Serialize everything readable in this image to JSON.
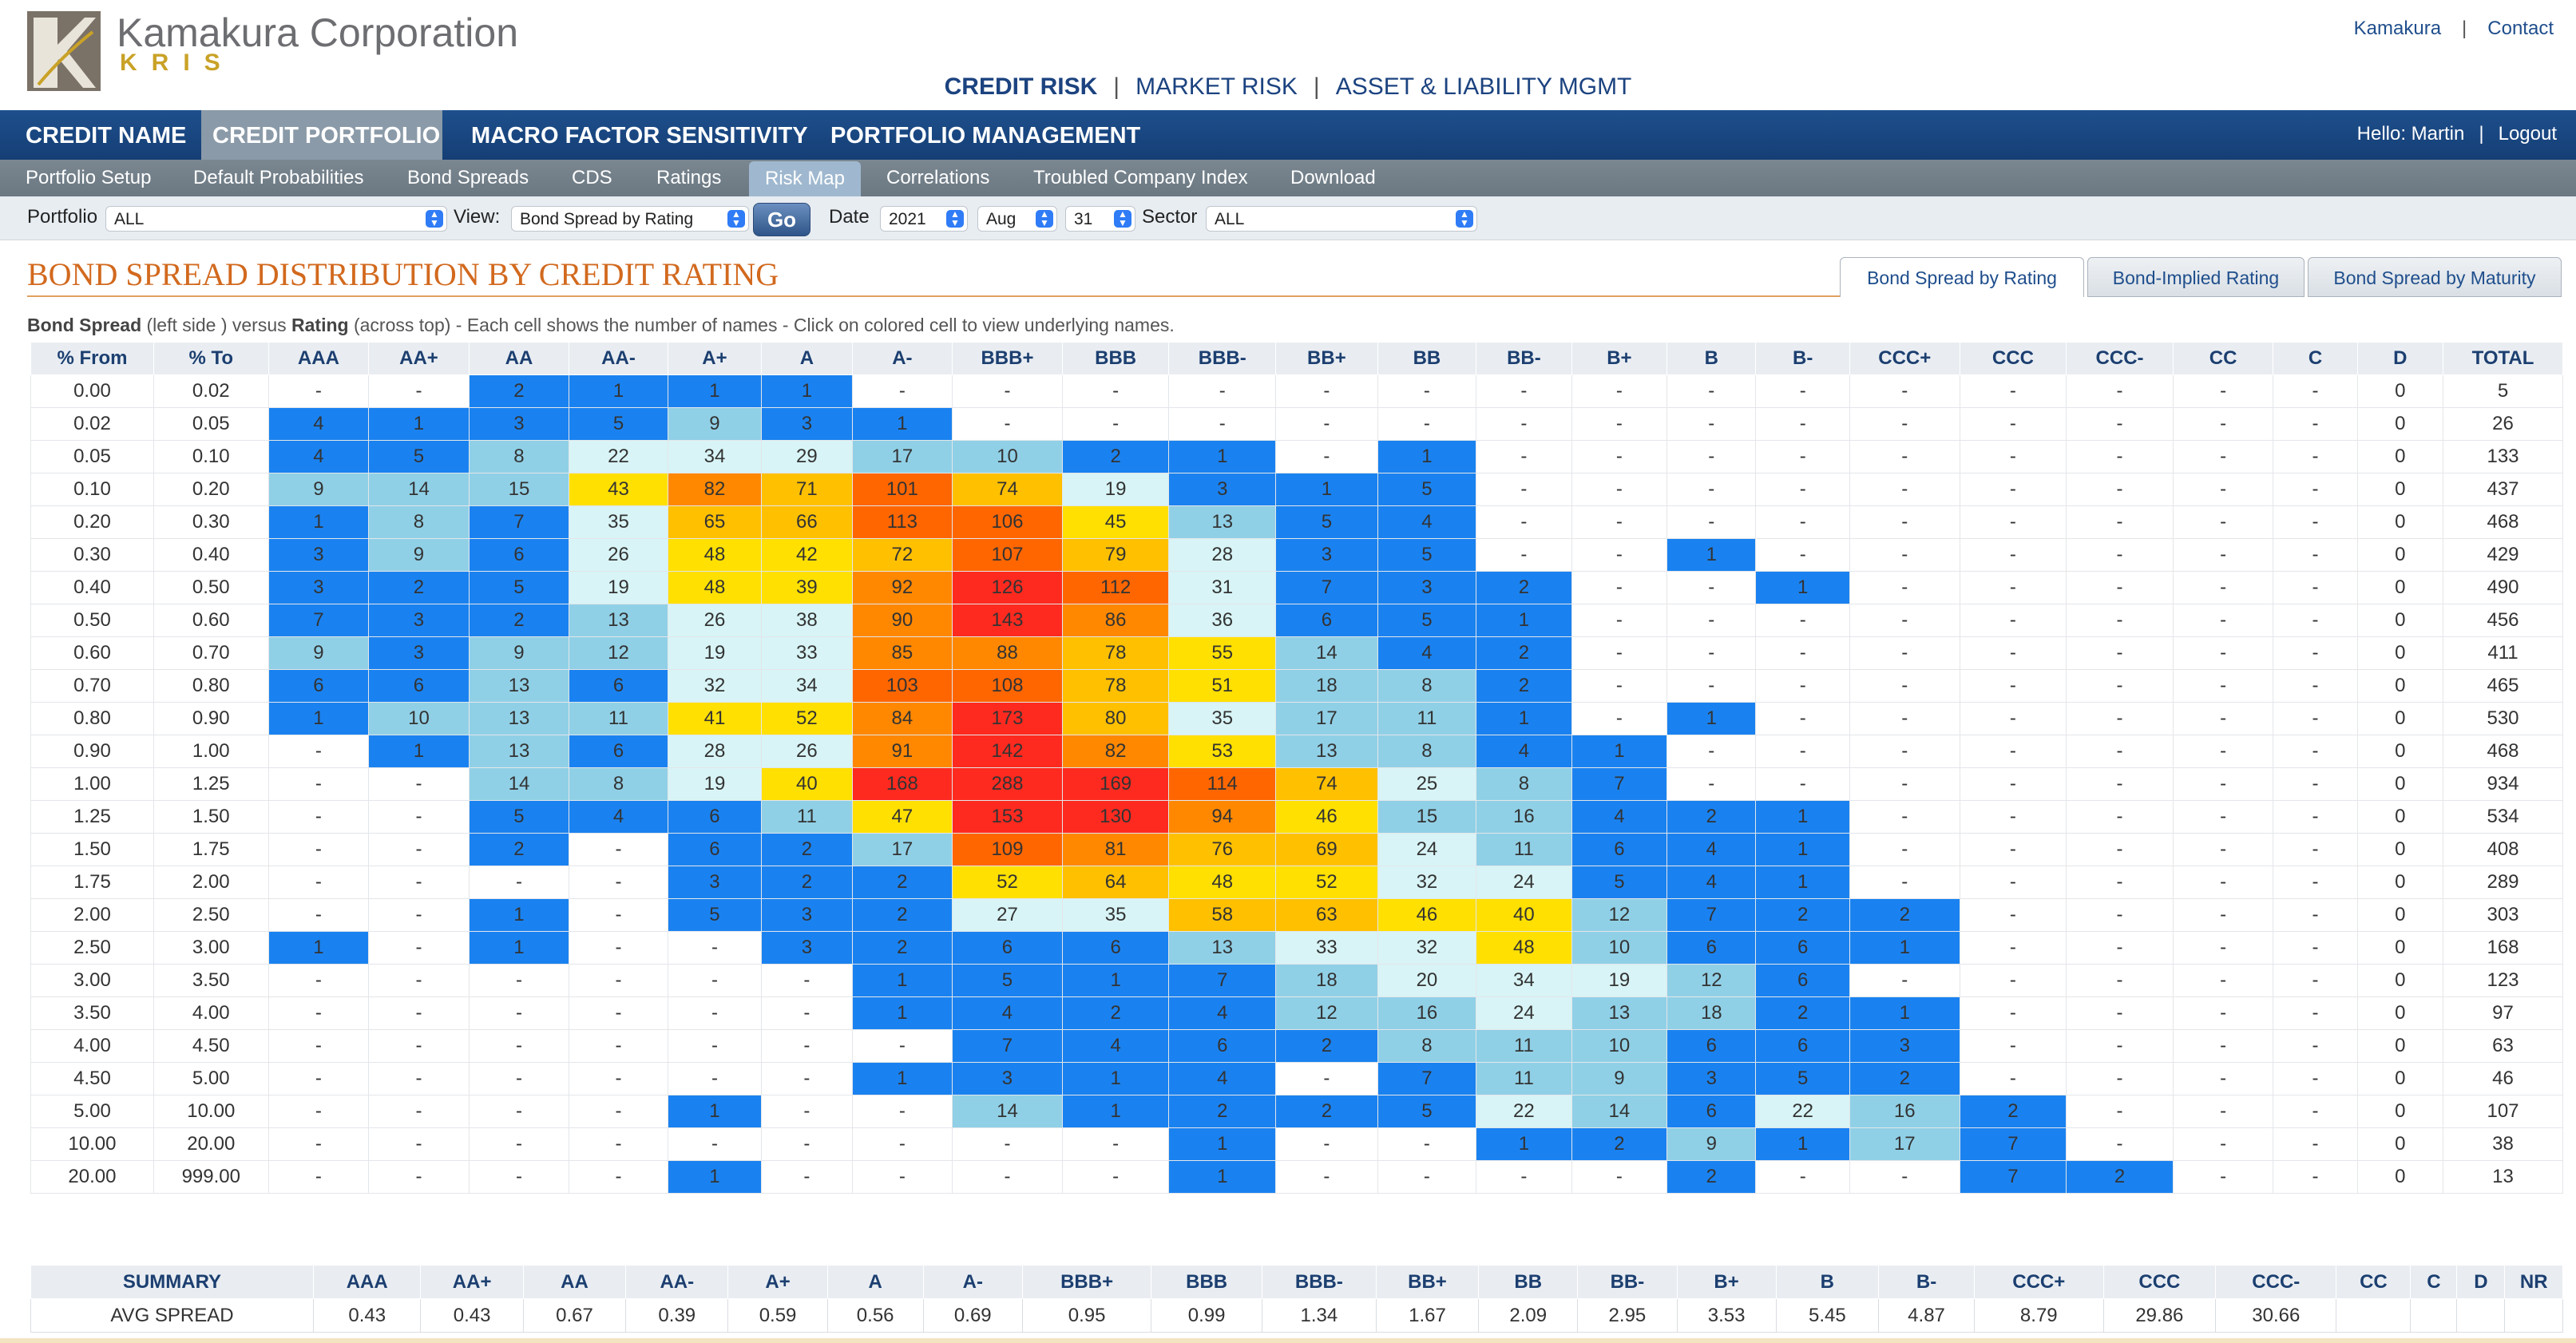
{
  "header": {
    "company": "Kamakura Corporation",
    "product": "KRIS",
    "top_links": [
      "Kamakura",
      "Contact"
    ],
    "main_nav": [
      "CREDIT RISK",
      "MARKET RISK",
      "ASSET & LIABILITY MGMT"
    ]
  },
  "nav": {
    "primary_tabs": [
      "CREDIT NAME",
      "CREDIT PORTFOLIO",
      "MACRO FACTOR SENSITIVITY",
      "PORTFOLIO MANAGEMENT"
    ],
    "primary_active": "CREDIT PORTFOLIO",
    "greeting": "Hello: Martin",
    "logout": "Logout",
    "secondary_tabs": [
      "Portfolio Setup",
      "Default Probabilities",
      "Bond Spreads",
      "CDS",
      "Ratings",
      "Risk Map",
      "Correlations",
      "Troubled Company Index",
      "Download"
    ],
    "secondary_active": "Risk Map"
  },
  "filters": {
    "portfolio_label": "Portfolio",
    "portfolio_value": "ALL",
    "view_label": "View:",
    "view_value": "Bond Spread by Rating",
    "go_label": "Go",
    "date_label": "Date",
    "year": "2021",
    "month": "Aug",
    "day": "31",
    "sector_label": "Sector",
    "sector_value": "ALL"
  },
  "page": {
    "title": "BOND SPREAD DISTRIBUTION BY CREDIT RATING",
    "view_tabs": [
      "Bond Spread by Rating",
      "Bond-Implied Rating",
      "Bond Spread by Maturity"
    ],
    "view_tab_active": "Bond Spread by Rating",
    "subtitle_bold1": "Bond Spread",
    "subtitle_part1": " (left side ) versus ",
    "subtitle_bold2": "Rating",
    "subtitle_part2": " (across top) - Each cell shows the number of names - Click on colored cell to view underlying names."
  },
  "colors": {
    "blue": "#1a82f0",
    "light_blue": "#90d0e6",
    "pale_cyan": "#d8f4f6",
    "yellow": "#ffe000",
    "gold": "#ffc000",
    "orange": "#ff8800",
    "dark_orange": "#ff6600",
    "red": "#ff2a1f"
  },
  "grid": {
    "headers": [
      "% From",
      "% To",
      "AAA",
      "AA+",
      "AA",
      "AA-",
      "A+",
      "A",
      "A-",
      "BBB+",
      "BBB",
      "BBB-",
      "BB+",
      "BB",
      "BB-",
      "B+",
      "B",
      "B-",
      "CCC+",
      "CCC",
      "CCC-",
      "CC",
      "C",
      "D",
      "TOTAL"
    ],
    "rows": [
      [
        "0.00",
        "0.02",
        "-",
        "-",
        "2",
        "1",
        "1",
        "1",
        "-",
        "-",
        "-",
        "-",
        "-",
        "-",
        "-",
        "-",
        "-",
        "-",
        "-",
        "-",
        "-",
        "-",
        "-",
        "0",
        "5"
      ],
      [
        "0.02",
        "0.05",
        "4",
        "1",
        "3",
        "5",
        "9",
        "3",
        "1",
        "-",
        "-",
        "-",
        "-",
        "-",
        "-",
        "-",
        "-",
        "-",
        "-",
        "-",
        "-",
        "-",
        "-",
        "0",
        "26"
      ],
      [
        "0.05",
        "0.10",
        "4",
        "5",
        "8",
        "22",
        "34",
        "29",
        "17",
        "10",
        "2",
        "1",
        "-",
        "1",
        "-",
        "-",
        "-",
        "-",
        "-",
        "-",
        "-",
        "-",
        "-",
        "0",
        "133"
      ],
      [
        "0.10",
        "0.20",
        "9",
        "14",
        "15",
        "43",
        "82",
        "71",
        "101",
        "74",
        "19",
        "3",
        "1",
        "5",
        "-",
        "-",
        "-",
        "-",
        "-",
        "-",
        "-",
        "-",
        "-",
        "0",
        "437"
      ],
      [
        "0.20",
        "0.30",
        "1",
        "8",
        "7",
        "35",
        "65",
        "66",
        "113",
        "106",
        "45",
        "13",
        "5",
        "4",
        "-",
        "-",
        "-",
        "-",
        "-",
        "-",
        "-",
        "-",
        "-",
        "0",
        "468"
      ],
      [
        "0.30",
        "0.40",
        "3",
        "9",
        "6",
        "26",
        "48",
        "42",
        "72",
        "107",
        "79",
        "28",
        "3",
        "5",
        "-",
        "-",
        "1",
        "-",
        "-",
        "-",
        "-",
        "-",
        "-",
        "0",
        "429"
      ],
      [
        "0.40",
        "0.50",
        "3",
        "2",
        "5",
        "19",
        "48",
        "39",
        "92",
        "126",
        "112",
        "31",
        "7",
        "3",
        "2",
        "-",
        "-",
        "1",
        "-",
        "-",
        "-",
        "-",
        "-",
        "0",
        "490"
      ],
      [
        "0.50",
        "0.60",
        "7",
        "3",
        "2",
        "13",
        "26",
        "38",
        "90",
        "143",
        "86",
        "36",
        "6",
        "5",
        "1",
        "-",
        "-",
        "-",
        "-",
        "-",
        "-",
        "-",
        "-",
        "0",
        "456"
      ],
      [
        "0.60",
        "0.70",
        "9",
        "3",
        "9",
        "12",
        "19",
        "33",
        "85",
        "88",
        "78",
        "55",
        "14",
        "4",
        "2",
        "-",
        "-",
        "-",
        "-",
        "-",
        "-",
        "-",
        "-",
        "0",
        "411"
      ],
      [
        "0.70",
        "0.80",
        "6",
        "6",
        "13",
        "6",
        "32",
        "34",
        "103",
        "108",
        "78",
        "51",
        "18",
        "8",
        "2",
        "-",
        "-",
        "-",
        "-",
        "-",
        "-",
        "-",
        "-",
        "0",
        "465"
      ],
      [
        "0.80",
        "0.90",
        "1",
        "10",
        "13",
        "11",
        "41",
        "52",
        "84",
        "173",
        "80",
        "35",
        "17",
        "11",
        "1",
        "-",
        "1",
        "-",
        "-",
        "-",
        "-",
        "-",
        "-",
        "0",
        "530"
      ],
      [
        "0.90",
        "1.00",
        "-",
        "1",
        "13",
        "6",
        "28",
        "26",
        "91",
        "142",
        "82",
        "53",
        "13",
        "8",
        "4",
        "1",
        "-",
        "-",
        "-",
        "-",
        "-",
        "-",
        "-",
        "0",
        "468"
      ],
      [
        "1.00",
        "1.25",
        "-",
        "-",
        "14",
        "8",
        "19",
        "40",
        "168",
        "288",
        "169",
        "114",
        "74",
        "25",
        "8",
        "7",
        "-",
        "-",
        "-",
        "-",
        "-",
        "-",
        "-",
        "0",
        "934"
      ],
      [
        "1.25",
        "1.50",
        "-",
        "-",
        "5",
        "4",
        "6",
        "11",
        "47",
        "153",
        "130",
        "94",
        "46",
        "15",
        "16",
        "4",
        "2",
        "1",
        "-",
        "-",
        "-",
        "-",
        "-",
        "0",
        "534"
      ],
      [
        "1.50",
        "1.75",
        "-",
        "-",
        "2",
        "-",
        "6",
        "2",
        "17",
        "109",
        "81",
        "76",
        "69",
        "24",
        "11",
        "6",
        "4",
        "1",
        "-",
        "-",
        "-",
        "-",
        "-",
        "0",
        "408"
      ],
      [
        "1.75",
        "2.00",
        "-",
        "-",
        "-",
        "-",
        "3",
        "2",
        "2",
        "52",
        "64",
        "48",
        "52",
        "32",
        "24",
        "5",
        "4",
        "1",
        "-",
        "-",
        "-",
        "-",
        "-",
        "0",
        "289"
      ],
      [
        "2.00",
        "2.50",
        "-",
        "-",
        "1",
        "-",
        "5",
        "3",
        "2",
        "27",
        "35",
        "58",
        "63",
        "46",
        "40",
        "12",
        "7",
        "2",
        "2",
        "-",
        "-",
        "-",
        "-",
        "0",
        "303"
      ],
      [
        "2.50",
        "3.00",
        "1",
        "-",
        "1",
        "-",
        "-",
        "3",
        "2",
        "6",
        "6",
        "13",
        "33",
        "32",
        "48",
        "10",
        "6",
        "6",
        "1",
        "-",
        "-",
        "-",
        "-",
        "0",
        "168"
      ],
      [
        "3.00",
        "3.50",
        "-",
        "-",
        "-",
        "-",
        "-",
        "-",
        "1",
        "5",
        "1",
        "7",
        "18",
        "20",
        "34",
        "19",
        "12",
        "6",
        "-",
        "-",
        "-",
        "-",
        "-",
        "0",
        "123"
      ],
      [
        "3.50",
        "4.00",
        "-",
        "-",
        "-",
        "-",
        "-",
        "-",
        "1",
        "4",
        "2",
        "4",
        "12",
        "16",
        "24",
        "13",
        "18",
        "2",
        "1",
        "-",
        "-",
        "-",
        "-",
        "0",
        "97"
      ],
      [
        "4.00",
        "4.50",
        "-",
        "-",
        "-",
        "-",
        "-",
        "-",
        "-",
        "7",
        "4",
        "6",
        "2",
        "8",
        "11",
        "10",
        "6",
        "6",
        "3",
        "-",
        "-",
        "-",
        "-",
        "0",
        "63"
      ],
      [
        "4.50",
        "5.00",
        "-",
        "-",
        "-",
        "-",
        "-",
        "-",
        "1",
        "3",
        "1",
        "4",
        "-",
        "7",
        "11",
        "9",
        "3",
        "5",
        "2",
        "-",
        "-",
        "-",
        "-",
        "0",
        "46"
      ],
      [
        "5.00",
        "10.00",
        "-",
        "-",
        "-",
        "-",
        "1",
        "-",
        "-",
        "14",
        "1",
        "2",
        "2",
        "5",
        "22",
        "14",
        "6",
        "22",
        "16",
        "2",
        "-",
        "-",
        "-",
        "0",
        "107"
      ],
      [
        "10.00",
        "20.00",
        "-",
        "-",
        "-",
        "-",
        "-",
        "-",
        "-",
        "-",
        "-",
        "1",
        "-",
        "-",
        "1",
        "2",
        "9",
        "1",
        "17",
        "7",
        "-",
        "-",
        "-",
        "0",
        "38"
      ],
      [
        "20.00",
        "999.00",
        "-",
        "-",
        "-",
        "-",
        "1",
        "-",
        "-",
        "-",
        "-",
        "1",
        "-",
        "-",
        "-",
        "-",
        "2",
        "-",
        "-",
        "7",
        "2",
        "-",
        "-",
        "0",
        "13"
      ]
    ]
  },
  "summary": {
    "headers": [
      "SUMMARY",
      "AAA",
      "AA+",
      "AA",
      "AA-",
      "A+",
      "A",
      "A-",
      "BBB+",
      "BBB",
      "BBB-",
      "BB+",
      "BB",
      "BB-",
      "B+",
      "B",
      "B-",
      "CCC+",
      "CCC",
      "CCC-",
      "CC",
      "C",
      "D",
      "NR"
    ],
    "row": [
      "AVG SPREAD",
      "0.43",
      "0.43",
      "0.67",
      "0.39",
      "0.59",
      "0.56",
      "0.69",
      "0.95",
      "0.99",
      "1.34",
      "1.67",
      "2.09",
      "2.95",
      "3.53",
      "5.45",
      "4.87",
      "8.79",
      "29.86",
      "30.66",
      "",
      "",
      "",
      ""
    ]
  }
}
